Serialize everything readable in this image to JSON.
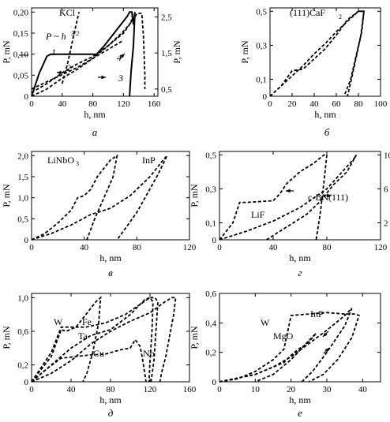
{
  "chart_data": [
    {
      "panel_letter": "a",
      "type": "line",
      "title": "KCl",
      "formula": "P ~ h",
      "xlabel": "h, nm",
      "ylabel": "P, mN",
      "xlim": [
        0,
        165
      ],
      "ylim": [
        0,
        0.21
      ],
      "xticks": [
        "0",
        "40",
        "80",
        "120",
        "160"
      ],
      "yticks": [
        "0",
        "0,05",
        "0,10",
        "0,15",
        "0,20"
      ],
      "right_axis": {
        "ylim": [
          0.3,
          2.75
        ],
        "ticks": [
          "0,5",
          "1,5",
          "2,5"
        ]
      },
      "curve_labels": [
        "1",
        "2",
        "3",
        "4"
      ],
      "series": [
        {
          "style": "solid",
          "x": [
            0,
            10,
            20,
            25,
            85,
            95,
            110,
            125,
            128,
            131,
            133,
            135,
            133,
            130,
            128
          ],
          "y": [
            0,
            0.055,
            0.095,
            0.1,
            0.1,
            0.12,
            0.155,
            0.19,
            0.2,
            0.2,
            0.17,
            0.2,
            0.12,
            0.06,
            0
          ]
        },
        {
          "style": "dashed",
          "x": [
            40,
            48,
            55,
            62
          ],
          "y": [
            0.03,
            0.085,
            0.145,
            0.2
          ]
        },
        {
          "style": "dashed",
          "right_axis": true,
          "x": [
            0,
            20,
            40,
            60,
            80,
            100,
            120,
            132,
            138,
            144,
            146,
            148,
            148
          ],
          "y": [
            0.5,
            0.7,
            0.9,
            1.1,
            1.35,
            1.7,
            2.1,
            2.4,
            2.6,
            2.6,
            2.0,
            0.9,
            0.5
          ]
        },
        {
          "style": "dashed",
          "right_axis": true,
          "x": [
            0,
            20,
            40,
            60,
            80,
            100,
            120,
            130,
            132
          ],
          "y": [
            0.4,
            0.65,
            0.95,
            1.2,
            1.4,
            1.7,
            2.05,
            2.35,
            2.6
          ]
        },
        {
          "style": "dashed",
          "right_axis": true,
          "x": [
            0,
            20,
            40,
            60,
            80,
            100,
            120
          ],
          "y": [
            0.3,
            0.5,
            0.8,
            1.05,
            1.35,
            1.6,
            1.85
          ]
        }
      ]
    },
    {
      "panel_letter": "б",
      "type": "line",
      "title": "(111)CaF",
      "xlabel": "h, nm",
      "ylabel": "P, mN",
      "xlim": [
        0,
        100
      ],
      "ylim": [
        0,
        0.52
      ],
      "xticks": [
        "0",
        "20",
        "40",
        "60",
        "80",
        "100"
      ],
      "yticks": [
        "0",
        "0,1",
        "0,3",
        "0,5"
      ],
      "series": [
        {
          "style": "dashed",
          "x": [
            0,
            10,
            20,
            30,
            40,
            50,
            60,
            70,
            80,
            85,
            82,
            77,
            73,
            70
          ],
          "y": [
            0,
            0.06,
            0.15,
            0.16,
            0.22,
            0.28,
            0.36,
            0.45,
            0.5,
            0.5,
            0.35,
            0.2,
            0.08,
            0
          ]
        },
        {
          "style": "dashed",
          "x": [
            0,
            10,
            20,
            30,
            40,
            50,
            60,
            70,
            80,
            85,
            83,
            78,
            73,
            67
          ],
          "y": [
            0,
            0.06,
            0.12,
            0.18,
            0.25,
            0.31,
            0.38,
            0.44,
            0.5,
            0.5,
            0.38,
            0.24,
            0.1,
            0
          ]
        }
      ]
    },
    {
      "panel_letter": "в",
      "type": "line",
      "labels": [
        "LiNbO",
        "InP"
      ],
      "xlabel": "h, nm",
      "ylabel": "P, mN",
      "xlim": [
        0,
        120
      ],
      "ylim": [
        0,
        2.1
      ],
      "xticks": [
        "0",
        "40",
        "80",
        "120"
      ],
      "yticks": [
        "0",
        "0,5",
        "1,0",
        "1,5",
        "2,0"
      ],
      "series": [
        {
          "style": "dashed",
          "x": [
            0,
            10,
            20,
            30,
            35,
            40,
            45,
            50,
            60,
            65,
            62,
            55,
            48,
            42
          ],
          "y": [
            0,
            0.15,
            0.4,
            0.7,
            1.0,
            1.05,
            1.2,
            1.5,
            1.9,
            2.0,
            1.5,
            1.0,
            0.5,
            0
          ]
        },
        {
          "style": "dashed",
          "x": [
            0,
            15,
            30,
            45,
            60,
            75,
            90,
            100,
            103,
            96,
            88,
            80,
            72,
            65
          ],
          "y": [
            0,
            0.15,
            0.35,
            0.6,
            0.75,
            1.05,
            1.5,
            1.9,
            2.0,
            1.55,
            1.1,
            0.65,
            0.3,
            0
          ]
        }
      ]
    },
    {
      "panel_letter": "г",
      "type": "line",
      "labels": [
        "LiF",
        "c-BN(111)"
      ],
      "xlabel": "h, nm",
      "ylabel": "P, mN",
      "xlim": [
        0,
        120
      ],
      "ylim": [
        0,
        0.52
      ],
      "xticks": [
        "0",
        "40",
        "80",
        "120"
      ],
      "yticks": [
        "0",
        "0,1",
        "0,3",
        "0,5"
      ],
      "right_axis": {
        "ylim": [
          0,
          10.4
        ],
        "ticks": [
          "2",
          "6",
          "10"
        ]
      },
      "series": [
        {
          "style": "dashed",
          "x": [
            0,
            10,
            15,
            20,
            40,
            45,
            50,
            60,
            70,
            78,
            80,
            78,
            75,
            72
          ],
          "y": [
            0,
            0.1,
            0.22,
            0.22,
            0.23,
            0.27,
            0.33,
            0.4,
            0.45,
            0.5,
            0.5,
            0.35,
            0.15,
            0
          ]
        },
        {
          "style": "dashed",
          "right_axis": true,
          "x": [
            0,
            20,
            40,
            60,
            80,
            100,
            102,
            95,
            85,
            75,
            65,
            55,
            45,
            35
          ],
          "y": [
            0,
            1.0,
            2.2,
            3.8,
            6.0,
            9.5,
            10,
            8.0,
            6.5,
            4.5,
            3.0,
            2.0,
            1.0,
            0
          ]
        }
      ]
    },
    {
      "panel_letter": "д",
      "type": "line",
      "labels": [
        "W",
        "Fe",
        "Ta",
        "Cu",
        "Nb"
      ],
      "xlabel": "h, nm",
      "ylabel": "P, mN",
      "xlim": [
        0,
        160
      ],
      "ylim": [
        0,
        1.05
      ],
      "xticks": [
        "0",
        "40",
        "80",
        "120",
        "160"
      ],
      "yticks": [
        "0",
        "0,2",
        "0,6",
        "1,0"
      ],
      "series": [
        {
          "style": "dashed",
          "x": [
            0,
            20,
            30,
            35,
            45,
            55,
            65,
            70,
            68,
            62,
            56,
            52
          ],
          "y": [
            0,
            0.3,
            0.62,
            0.6,
            0.65,
            0.8,
            0.95,
            1.0,
            0.7,
            0.35,
            0.1,
            0
          ]
        },
        {
          "style": "dashed",
          "x": [
            0,
            20,
            30,
            55,
            75,
            95,
            110,
            120,
            125,
            128,
            126,
            124,
            121
          ],
          "y": [
            0,
            0.35,
            0.65,
            0.65,
            0.7,
            0.8,
            0.92,
            1.0,
            1.0,
            0.95,
            0.6,
            0.25,
            0
          ]
        },
        {
          "style": "dashed",
          "x": [
            0,
            20,
            40,
            60,
            80,
            100,
            115,
            120,
            123,
            122,
            120,
            119
          ],
          "y": [
            0,
            0.2,
            0.4,
            0.55,
            0.62,
            0.8,
            0.98,
            1.0,
            0.95,
            0.6,
            0.25,
            0
          ]
        },
        {
          "style": "dashed",
          "x": [
            0,
            15,
            30,
            45,
            60,
            75,
            90,
            100,
            105,
            110,
            112,
            114,
            116
          ],
          "y": [
            0,
            0.15,
            0.28,
            0.3,
            0.32,
            0.33,
            0.38,
            0.4,
            0.5,
            0.42,
            0.3,
            0.15,
            0
          ]
        },
        {
          "style": "dashed",
          "x": [
            0,
            20,
            40,
            60,
            80,
            100,
            120,
            135,
            142,
            146,
            144,
            140,
            136,
            132,
            130
          ],
          "y": [
            0,
            0.1,
            0.25,
            0.45,
            0.6,
            0.72,
            0.82,
            0.95,
            1.0,
            1.0,
            0.8,
            0.55,
            0.3,
            0.12,
            0
          ]
        }
      ]
    },
    {
      "panel_letter": "е",
      "type": "line",
      "labels": [
        "W",
        "InP",
        "MgO"
      ],
      "xlabel": "h, nm",
      "ylabel": "P, mN",
      "xlim": [
        0,
        45
      ],
      "ylim": [
        0,
        0.6
      ],
      "xticks": [
        "0",
        "10",
        "20",
        "30",
        "40"
      ],
      "yticks": [
        "0",
        "0,2",
        "0,4",
        "0,6"
      ],
      "series": [
        {
          "style": "dashed",
          "x": [
            0,
            5,
            10,
            15,
            18,
            20,
            25,
            30,
            35,
            38,
            39,
            37,
            33,
            29,
            25
          ],
          "y": [
            0,
            0.02,
            0.07,
            0.15,
            0.22,
            0.45,
            0.46,
            0.47,
            0.46,
            0.46,
            0.45,
            0.3,
            0.15,
            0.05,
            0
          ]
        },
        {
          "style": "dashed",
          "x": [
            0,
            10,
            15,
            20,
            25,
            30,
            35,
            37,
            35,
            30,
            26,
            23
          ],
          "y": [
            0,
            0.05,
            0.1,
            0.17,
            0.26,
            0.35,
            0.45,
            0.5,
            0.38,
            0.2,
            0.07,
            0
          ]
        },
        {
          "style": "dashed",
          "x": [
            0,
            10,
            15,
            18,
            20,
            22,
            24,
            26,
            27,
            25,
            20,
            15,
            10
          ],
          "y": [
            0,
            0.05,
            0.1,
            0.13,
            0.18,
            0.22,
            0.25,
            0.3,
            0.33,
            0.28,
            0.15,
            0.05,
            0
          ]
        }
      ]
    }
  ]
}
